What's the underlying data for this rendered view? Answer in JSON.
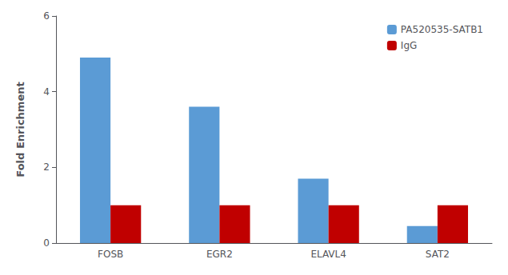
{
  "chart_data": {
    "type": "bar",
    "categories": [
      "FOSB",
      "EGR2",
      "ELAVL4",
      "SAT2"
    ],
    "series": [
      {
        "name": "PA520535-SATB1",
        "color": "#5B9BD5",
        "values": [
          4.9,
          3.6,
          1.7,
          0.45
        ]
      },
      {
        "name": "IgG",
        "color": "#C00000",
        "values": [
          1.0,
          1.0,
          1.0,
          1.0
        ]
      }
    ],
    "ylabel": "Fold Enrichment",
    "ylim": [
      0,
      6
    ],
    "yticks": [
      0,
      2,
      4,
      6
    ],
    "grid": false,
    "legend": "upper right"
  }
}
